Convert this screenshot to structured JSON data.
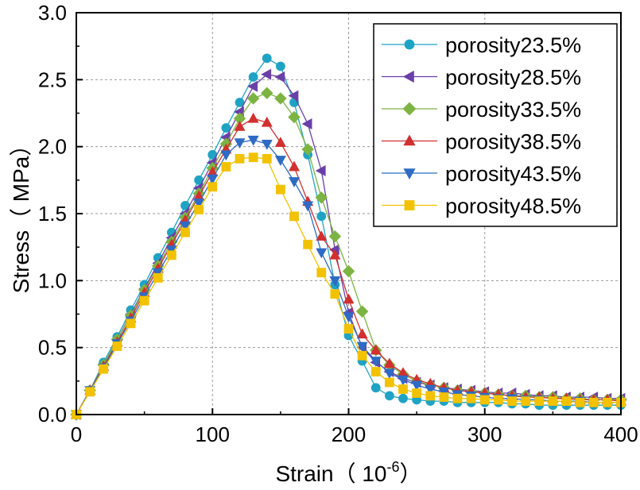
{
  "chart_data": {
    "type": "line",
    "title": "",
    "xlabel": "Strain（ 10",
    "xlabel_exponent": "-6",
    "xlabel_suffix": "）",
    "ylabel": "Stress（ MPa）",
    "xlim": [
      0,
      400
    ],
    "ylim": [
      0,
      3.0
    ],
    "x_ticks": [
      "0",
      "100",
      "200",
      "300",
      "400"
    ],
    "y_ticks": [
      "0.0",
      "0.5",
      "1.0",
      "1.5",
      "2.0",
      "2.5",
      "3.0"
    ],
    "grid": true,
    "legend_position": "top-right",
    "x": [
      0,
      10,
      20,
      30,
      40,
      50,
      60,
      70,
      80,
      90,
      100,
      110,
      120,
      130,
      140,
      150,
      160,
      170,
      180,
      190,
      200,
      210,
      220,
      230,
      240,
      250,
      260,
      270,
      280,
      290,
      300,
      310,
      320,
      330,
      340,
      350,
      360,
      370,
      380,
      390,
      400
    ],
    "series": [
      {
        "name": "porosity23.5%",
        "color": "#1fa3c4",
        "marker": "circle",
        "values": [
          0,
          0.18,
          0.39,
          0.58,
          0.78,
          0.97,
          1.17,
          1.36,
          1.56,
          1.75,
          1.94,
          2.14,
          2.33,
          2.52,
          2.66,
          2.6,
          2.33,
          1.94,
          1.48,
          0.97,
          0.59,
          0.4,
          0.2,
          0.14,
          0.12,
          0.11,
          0.1,
          0.1,
          0.09,
          0.09,
          0.09,
          0.09,
          0.08,
          0.08,
          0.07,
          0.07,
          0.07,
          0.07,
          0.07,
          0.07,
          0.07
        ]
      },
      {
        "name": "porosity28.5%",
        "color": "#6b3fa8",
        "marker": "triangle-left",
        "values": [
          0,
          0.18,
          0.37,
          0.56,
          0.75,
          0.94,
          1.13,
          1.32,
          1.5,
          1.69,
          1.88,
          2.07,
          2.26,
          2.45,
          2.54,
          2.52,
          2.38,
          2.17,
          1.82,
          1.23,
          0.76,
          0.5,
          0.39,
          0.32,
          0.27,
          0.24,
          0.22,
          0.2,
          0.19,
          0.18,
          0.17,
          0.16,
          0.16,
          0.15,
          0.14,
          0.14,
          0.13,
          0.13,
          0.13,
          0.12,
          0.12
        ]
      },
      {
        "name": "porosity33.5%",
        "color": "#7cb342",
        "marker": "diamond",
        "values": [
          0,
          0.18,
          0.37,
          0.56,
          0.74,
          0.93,
          1.11,
          1.29,
          1.47,
          1.65,
          1.84,
          2.02,
          2.21,
          2.36,
          2.4,
          2.36,
          2.22,
          1.98,
          1.62,
          1.33,
          1.07,
          0.77,
          0.48,
          0.37,
          0.3,
          0.25,
          0.22,
          0.2,
          0.18,
          0.17,
          0.16,
          0.15,
          0.14,
          0.14,
          0.13,
          0.13,
          0.12,
          0.12,
          0.11,
          0.11,
          0.11
        ]
      },
      {
        "name": "porosity38.5%",
        "color": "#d32f2f",
        "marker": "triangle-up",
        "values": [
          0,
          0.18,
          0.36,
          0.54,
          0.72,
          0.91,
          1.09,
          1.27,
          1.45,
          1.63,
          1.81,
          1.98,
          2.15,
          2.21,
          2.18,
          2.03,
          1.85,
          1.59,
          1.33,
          1.19,
          0.86,
          0.6,
          0.48,
          0.38,
          0.31,
          0.26,
          0.23,
          0.2,
          0.18,
          0.17,
          0.16,
          0.15,
          0.14,
          0.13,
          0.13,
          0.12,
          0.12,
          0.11,
          0.11,
          0.11,
          0.1
        ]
      },
      {
        "name": "porosity43.5%",
        "color": "#2e6bc4",
        "marker": "triangle-down",
        "values": [
          0,
          0.18,
          0.35,
          0.53,
          0.7,
          0.88,
          1.06,
          1.23,
          1.41,
          1.58,
          1.76,
          1.94,
          2.03,
          2.05,
          2.02,
          1.9,
          1.74,
          1.56,
          1.21,
          1.0,
          0.73,
          0.51,
          0.4,
          0.31,
          0.26,
          0.22,
          0.19,
          0.17,
          0.15,
          0.14,
          0.13,
          0.12,
          0.12,
          0.11,
          0.11,
          0.1,
          0.1,
          0.1,
          0.09,
          0.09,
          0.09
        ]
      },
      {
        "name": "porosity48.5%",
        "color": "#f2c200",
        "marker": "square",
        "values": [
          0,
          0.17,
          0.34,
          0.51,
          0.68,
          0.85,
          1.02,
          1.19,
          1.36,
          1.53,
          1.7,
          1.85,
          1.91,
          1.92,
          1.91,
          1.68,
          1.48,
          1.27,
          1.06,
          0.9,
          0.64,
          0.44,
          0.32,
          0.24,
          0.19,
          0.16,
          0.14,
          0.13,
          0.12,
          0.12,
          0.11,
          0.11,
          0.1,
          0.1,
          0.1,
          0.1,
          0.1,
          0.09,
          0.09,
          0.09,
          0.09
        ]
      }
    ]
  }
}
